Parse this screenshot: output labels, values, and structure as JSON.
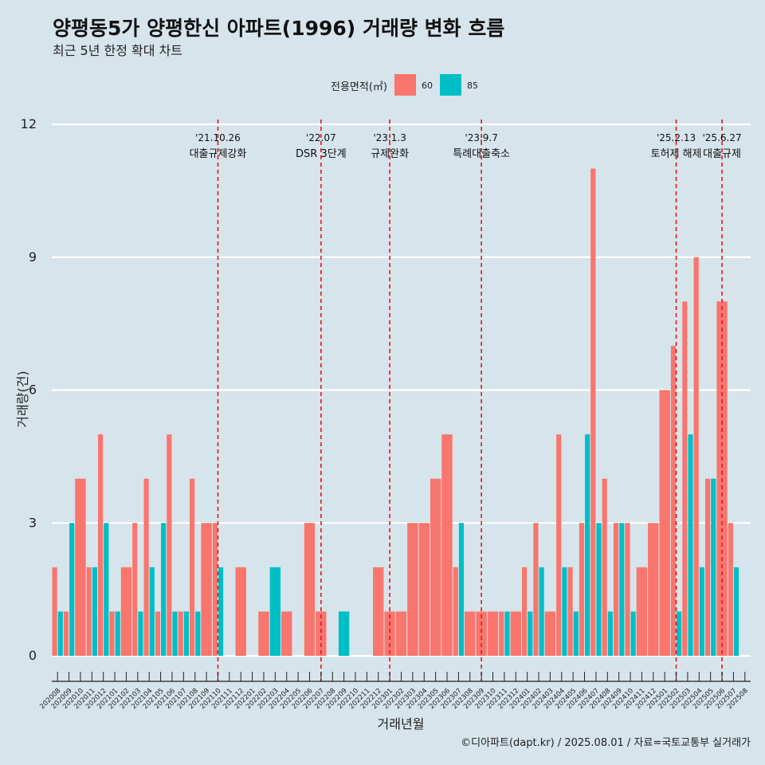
{
  "chart_data": {
    "type": "bar",
    "title": "양평동5가 양평한신 아파트(1996) 거래량 변화 흐름",
    "subtitle": "최근 5년 한정 확대 차트",
    "xlabel": "거래년월",
    "ylabel": "거래량(건)",
    "ylim": [
      -0.5,
      12.6
    ],
    "yticks": [
      0,
      3,
      6,
      9,
      12
    ],
    "grid": true,
    "legend": {
      "title": "전용면적(㎡)",
      "position": "top",
      "entries": [
        {
          "name": "60",
          "color": "#f8766d"
        },
        {
          "name": "85",
          "color": "#00bfc4"
        }
      ]
    },
    "categories": [
      "202008",
      "202009",
      "202010",
      "202011",
      "202012",
      "202101",
      "202102",
      "202103",
      "202104",
      "202105",
      "202106",
      "202107",
      "202108",
      "202109",
      "202110",
      "202111",
      "202112",
      "202201",
      "202202",
      "202203",
      "202204",
      "202205",
      "202206",
      "202207",
      "202208",
      "202209",
      "202210",
      "202211",
      "202212",
      "202301",
      "202302",
      "202303",
      "202304",
      "202305",
      "202306",
      "202307",
      "202308",
      "202309",
      "202310",
      "202311",
      "202312",
      "202401",
      "202402",
      "202403",
      "202404",
      "202405",
      "202406",
      "202407",
      "202408",
      "202409",
      "202410",
      "202411",
      "202412",
      "202501",
      "202502",
      "202503",
      "202504",
      "202505",
      "202506",
      "202507",
      "202508"
    ],
    "series": [
      {
        "name": "60",
        "color": "#f8766d",
        "values": [
          2,
          1,
          4,
          2,
          5,
          1,
          2,
          3,
          4,
          1,
          5,
          1,
          4,
          3,
          3,
          null,
          2,
          null,
          1,
          null,
          1,
          null,
          3,
          1,
          null,
          null,
          null,
          null,
          2,
          1,
          1,
          3,
          3,
          4,
          5,
          2,
          1,
          1,
          1,
          1,
          1,
          2,
          3,
          1,
          5,
          2,
          3,
          11,
          4,
          3,
          3,
          2,
          3,
          6,
          7,
          8,
          9,
          4,
          8,
          3,
          null
        ]
      },
      {
        "name": "85",
        "color": "#00bfc4",
        "values": [
          1,
          3,
          null,
          2,
          3,
          1,
          null,
          1,
          2,
          3,
          1,
          1,
          1,
          null,
          2,
          null,
          null,
          null,
          null,
          2,
          null,
          null,
          null,
          null,
          null,
          1,
          null,
          null,
          null,
          null,
          null,
          null,
          null,
          null,
          null,
          3,
          null,
          null,
          null,
          1,
          null,
          1,
          2,
          null,
          2,
          1,
          5,
          3,
          1,
          3,
          1,
          null,
          null,
          null,
          1,
          5,
          2,
          4,
          null,
          2,
          null
        ]
      }
    ],
    "annotations": [
      {
        "category": "202110",
        "date": "'21.10.26",
        "label": "대출규제강화"
      },
      {
        "category": "202207",
        "date": "'22.07",
        "label": "DSR 3단계"
      },
      {
        "category": "202301",
        "date": "'23.1.3",
        "label": "규제완화"
      },
      {
        "category": "202309",
        "date": "'23.9.7",
        "label": "특례대출축소"
      },
      {
        "category": "202502",
        "date": "'25.2.13",
        "label": "토허제 해제"
      },
      {
        "category": "202506",
        "date": "'25.6.27",
        "label": "대출규제"
      }
    ],
    "caption": "©디아파트(dapt.kr) / 2025.08.01 / 자료=국토교통부 실거래가"
  }
}
